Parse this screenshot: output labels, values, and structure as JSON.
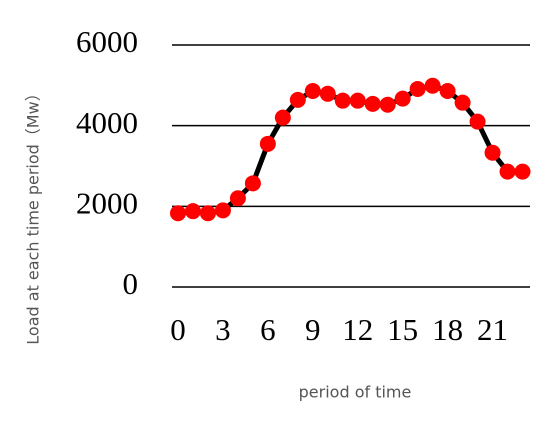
{
  "chart_data": {
    "type": "line",
    "x": [
      0,
      1,
      2,
      3,
      4,
      5,
      6,
      7,
      8,
      9,
      10,
      11,
      12,
      13,
      14,
      15,
      16,
      17,
      18,
      19,
      20,
      21,
      22,
      23
    ],
    "series": [
      {
        "color": "#ff0000",
        "line_color": "#000000",
        "values": [
          1830,
          1880,
          1830,
          1900,
          2200,
          2570,
          3550,
          4200,
          4640,
          4860,
          4790,
          4620,
          4620,
          4540,
          4520,
          4670,
          4910,
          4990,
          4860,
          4570,
          4100,
          3330,
          2860,
          2860
        ]
      }
    ],
    "xlim": [
      -0.4,
      23.5
    ],
    "xticks": [
      0,
      3,
      6,
      9,
      12,
      15,
      18,
      21
    ],
    "ylim": [
      0,
      6000
    ],
    "yticks": [
      0,
      2000,
      4000,
      6000
    ],
    "grid": true,
    "xlabel": "period of time",
    "ylabel": "Load at each time period（Mw）"
  }
}
